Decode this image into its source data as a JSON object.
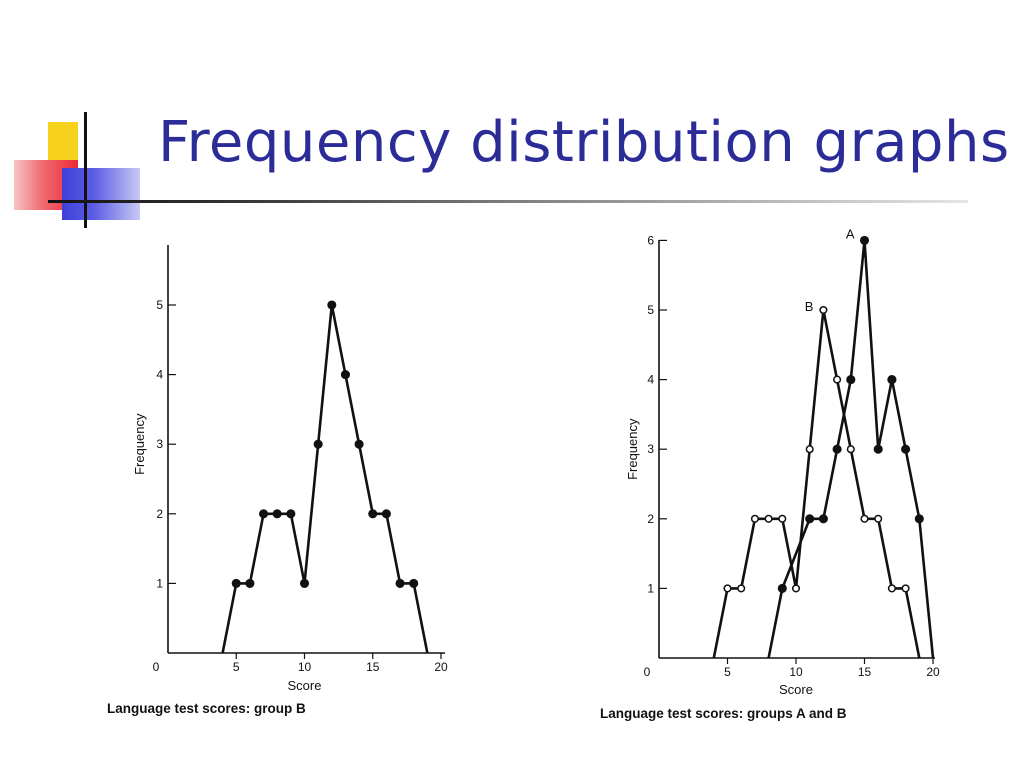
{
  "slide": {
    "title": "Frequency distribution graphs"
  },
  "chart_data": [
    {
      "type": "line",
      "caption": "Language test scores: group B",
      "xlabel": "Score",
      "ylabel": "Frequency",
      "xlim": [
        0,
        20
      ],
      "ylim": [
        0,
        6
      ],
      "x_ticks": [
        0,
        5,
        10,
        15,
        20
      ],
      "y_ticks": [
        1,
        2,
        3,
        4,
        5
      ],
      "grid": false,
      "series": [
        {
          "marker": "filled",
          "points": [
            [
              4,
              0
            ],
            [
              5,
              1
            ],
            [
              6,
              1
            ],
            [
              7,
              2
            ],
            [
              8,
              2
            ],
            [
              9,
              2
            ],
            [
              10,
              1
            ],
            [
              11,
              3
            ],
            [
              12,
              5
            ],
            [
              13,
              4
            ],
            [
              14,
              3
            ],
            [
              15,
              2
            ],
            [
              16,
              2
            ],
            [
              17,
              1
            ],
            [
              18,
              1
            ],
            [
              19,
              0
            ]
          ]
        }
      ]
    },
    {
      "type": "line",
      "caption": "Language test scores: groups A and B",
      "xlabel": "Score",
      "ylabel": "Frequency",
      "xlim": [
        0,
        20
      ],
      "ylim": [
        0,
        6
      ],
      "x_ticks": [
        0,
        5,
        10,
        15,
        20
      ],
      "y_ticks": [
        1,
        2,
        3,
        4,
        5,
        6
      ],
      "grid": false,
      "series": [
        {
          "name": "A",
          "marker": "filled",
          "points": [
            [
              8,
              0
            ],
            [
              9,
              1
            ],
            [
              11,
              2
            ],
            [
              12,
              2
            ],
            [
              13,
              3
            ],
            [
              14,
              4
            ],
            [
              15,
              6
            ],
            [
              16,
              3
            ],
            [
              17,
              4
            ],
            [
              18,
              3
            ],
            [
              19,
              2
            ],
            [
              20,
              0
            ]
          ]
        },
        {
          "name": "B",
          "marker": "open",
          "points": [
            [
              4,
              0
            ],
            [
              5,
              1
            ],
            [
              6,
              1
            ],
            [
              7,
              2
            ],
            [
              8,
              2
            ],
            [
              9,
              2
            ],
            [
              10,
              1
            ],
            [
              11,
              3
            ],
            [
              12,
              5
            ],
            [
              13,
              4
            ],
            [
              14,
              3
            ],
            [
              15,
              2
            ],
            [
              16,
              2
            ],
            [
              17,
              1
            ],
            [
              18,
              1
            ],
            [
              19,
              0
            ]
          ]
        }
      ]
    }
  ]
}
